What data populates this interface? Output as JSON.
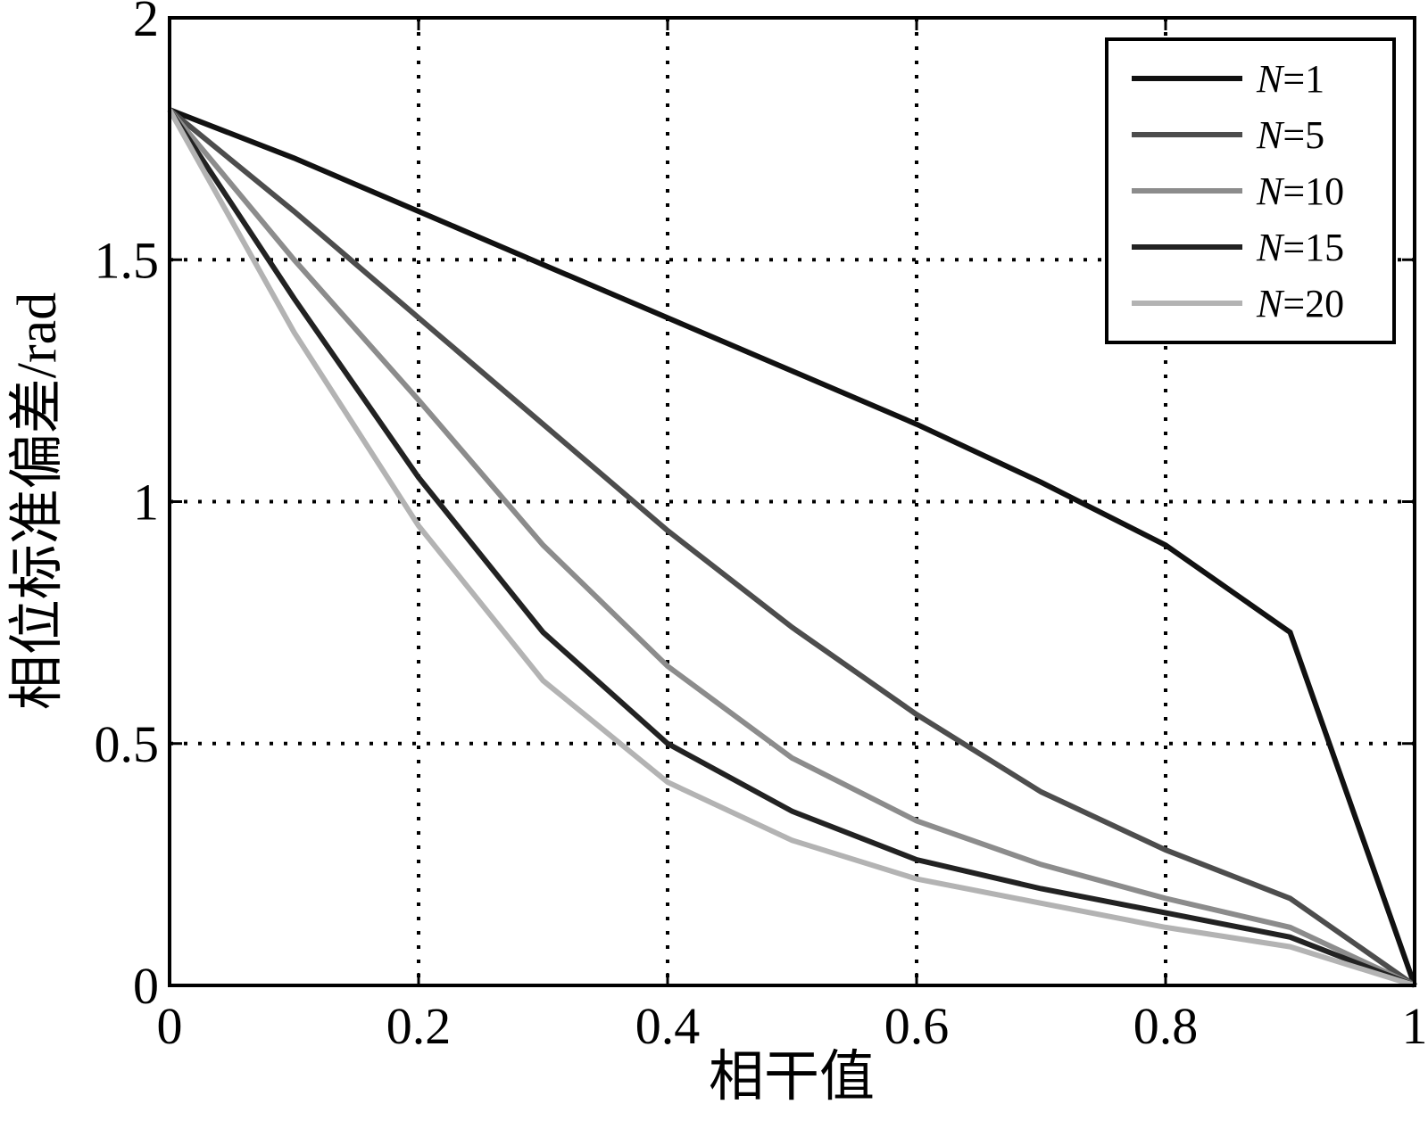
{
  "chart_data": {
    "type": "line",
    "title": "",
    "xlabel": "相干值",
    "ylabel": "相位标准偏差/rad",
    "xlim": [
      0,
      1
    ],
    "ylim": [
      0,
      2
    ],
    "x_ticks": [
      "0",
      "0.2",
      "0.4",
      "0.6",
      "0.8",
      "1"
    ],
    "y_ticks": [
      "0",
      "0.5",
      "1",
      "1.5",
      "2"
    ],
    "grid": true,
    "legend_position": "top-right",
    "x": [
      0,
      0.1,
      0.2,
      0.3,
      0.4,
      0.5,
      0.6,
      0.7,
      0.8,
      0.9,
      1.0
    ],
    "series": [
      {
        "name": "N=1",
        "color": "#111111",
        "values": [
          1.81,
          1.71,
          1.6,
          1.49,
          1.38,
          1.27,
          1.16,
          1.04,
          0.91,
          0.73,
          0.0
        ]
      },
      {
        "name": "N=5",
        "color": "#4d4d4d",
        "values": [
          1.81,
          1.6,
          1.38,
          1.16,
          0.94,
          0.74,
          0.56,
          0.4,
          0.28,
          0.18,
          0.0
        ]
      },
      {
        "name": "N=10",
        "color": "#8c8c8c",
        "values": [
          1.81,
          1.5,
          1.21,
          0.91,
          0.66,
          0.47,
          0.34,
          0.25,
          0.18,
          0.12,
          0.0
        ]
      },
      {
        "name": "N=15",
        "color": "#222222",
        "values": [
          1.81,
          1.42,
          1.05,
          0.73,
          0.5,
          0.36,
          0.26,
          0.2,
          0.15,
          0.1,
          0.0
        ]
      },
      {
        "name": "N=20",
        "color": "#b3b3b3",
        "values": [
          1.81,
          1.35,
          0.95,
          0.63,
          0.42,
          0.3,
          0.22,
          0.17,
          0.12,
          0.08,
          0.0
        ]
      }
    ]
  }
}
